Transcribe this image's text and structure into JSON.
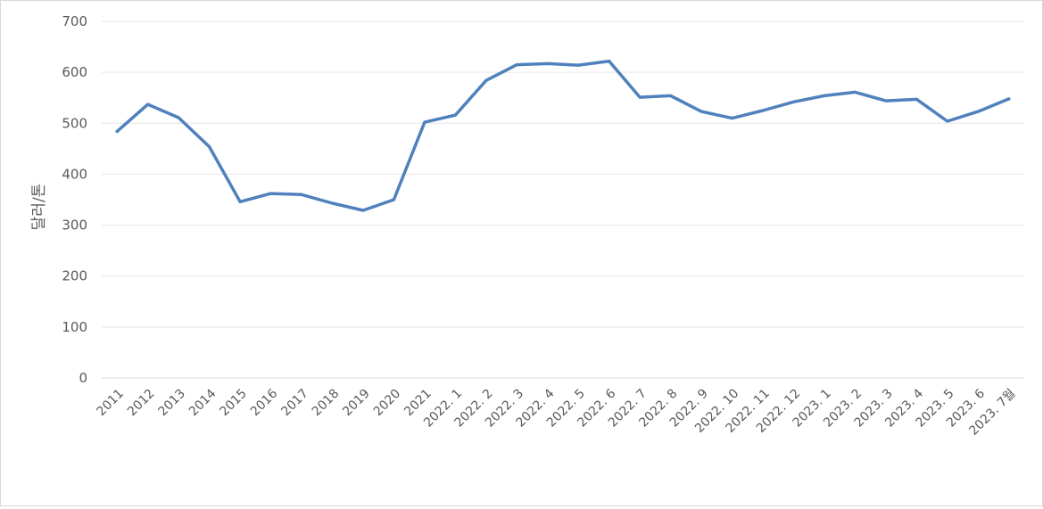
{
  "chart_data": {
    "type": "line",
    "ylabel": "달러/톤",
    "ylim": [
      0,
      700
    ],
    "yticks": [
      0,
      100,
      200,
      300,
      400,
      500,
      600,
      700
    ],
    "grid": true,
    "line_color": "#4f81bd",
    "categories": [
      "2011",
      "2012",
      "2013",
      "2014",
      "2015",
      "2016",
      "2017",
      "2018",
      "2019",
      "2020",
      "2021",
      "2022. 1",
      "2022. 2",
      "2022. 3",
      "2022. 4",
      "2022. 5",
      "2022. 6",
      "2022. 7",
      "2022. 8",
      "2022. 9",
      "2022. 10",
      "2022. 11",
      "2022. 12",
      "2023. 1",
      "2023. 2",
      "2023. 3",
      "2023. 4",
      "2023. 5",
      "2023. 6",
      "2023. 7월"
    ],
    "values": [
      484,
      537,
      511,
      454,
      346,
      362,
      360,
      343,
      329,
      350,
      502,
      516,
      584,
      615,
      617,
      614,
      622,
      551,
      554,
      523,
      510,
      525,
      542,
      554,
      561,
      544,
      547,
      504,
      523,
      548
    ]
  }
}
